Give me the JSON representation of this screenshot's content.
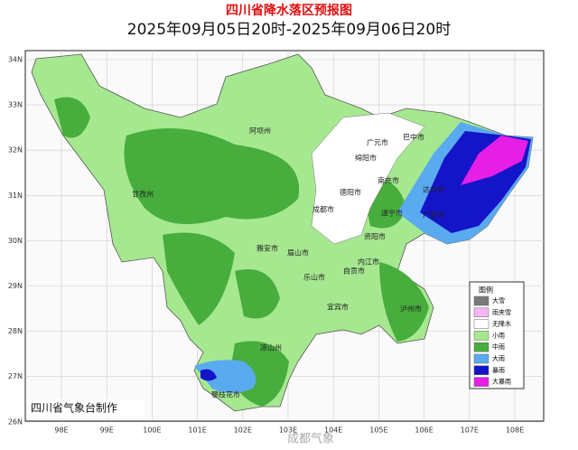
{
  "header": {
    "title": "四川省降水落区预报图",
    "subtitle": "2025年09月05日20时-2025年09月06日20时"
  },
  "map": {
    "lat_labels": [
      "34N",
      "33N",
      "32N",
      "31N",
      "30N",
      "29N",
      "28N",
      "27N",
      "26N"
    ],
    "lon_labels": [
      "98E",
      "99E",
      "100E",
      "101E",
      "102E",
      "103E",
      "104E",
      "105E",
      "106E",
      "107E",
      "108E"
    ],
    "places": [
      "阿坝州",
      "广元市",
      "绵阳市",
      "巴中市",
      "甘孜州",
      "德阳市",
      "成都市",
      "南充市",
      "达州市",
      "遂宁市",
      "广安市",
      "雅安市",
      "眉山市",
      "资阳市",
      "乐山市",
      "内江市",
      "自贡市",
      "宜宾市",
      "泸州市",
      "凉山州",
      "攀枝花市"
    ]
  },
  "legend": {
    "title": "图例",
    "items": [
      {
        "label": "大雪",
        "color": "#7a7a7a"
      },
      {
        "label": "雨夹雪",
        "color": "#f6b6f2"
      },
      {
        "label": "无降水",
        "color": "#ffffff"
      },
      {
        "label": "小雨",
        "color": "#a6e890"
      },
      {
        "label": "中雨",
        "color": "#47ad3c"
      },
      {
        "label": "大雨",
        "color": "#5aaaf0"
      },
      {
        "label": "暴雨",
        "color": "#1414c8"
      },
      {
        "label": "大暴雨",
        "color": "#e61ee6"
      }
    ]
  },
  "footer": "四川省气象台制作",
  "watermark": "成都气象"
}
